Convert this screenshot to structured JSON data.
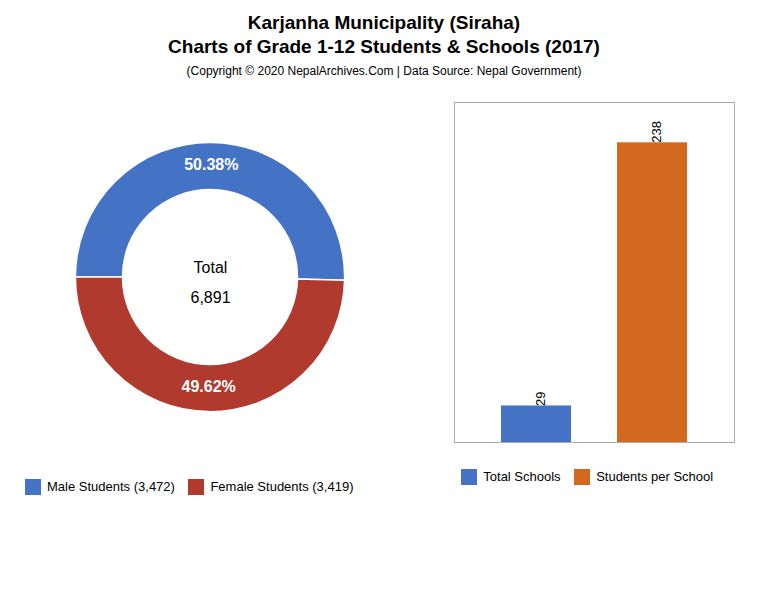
{
  "chart_data": [
    {
      "type": "donut",
      "title": [
        "Karjanha Municipality (Siraha)",
        "Charts of Grade 1-12 Students & Schools (2017)"
      ],
      "subtitle": "(Copyright © 2020 NepalArchives.Com | Data Source: Nepal Government)",
      "categories": [
        "Male Students (3,472)",
        "Female Students (3,419)"
      ],
      "values": [
        50.38,
        49.62
      ],
      "value_labels": [
        "50.38%",
        "49.62%"
      ],
      "colors": [
        "#4472C4",
        "#B03A2E"
      ],
      "data_labels": true,
      "legend": "lower left",
      "annotations": [
        "Total",
        "6,891"
      ]
    },
    {
      "type": "bar",
      "categories": [
        "Total Schools",
        "Students per School"
      ],
      "values": [
        29,
        238
      ],
      "colors": [
        "#4472C4",
        "#D2691E"
      ],
      "ylim": [
        0,
        270
      ],
      "yticks": [],
      "tick_labels": false,
      "data_labels": true,
      "legend": "lower center"
    }
  ]
}
